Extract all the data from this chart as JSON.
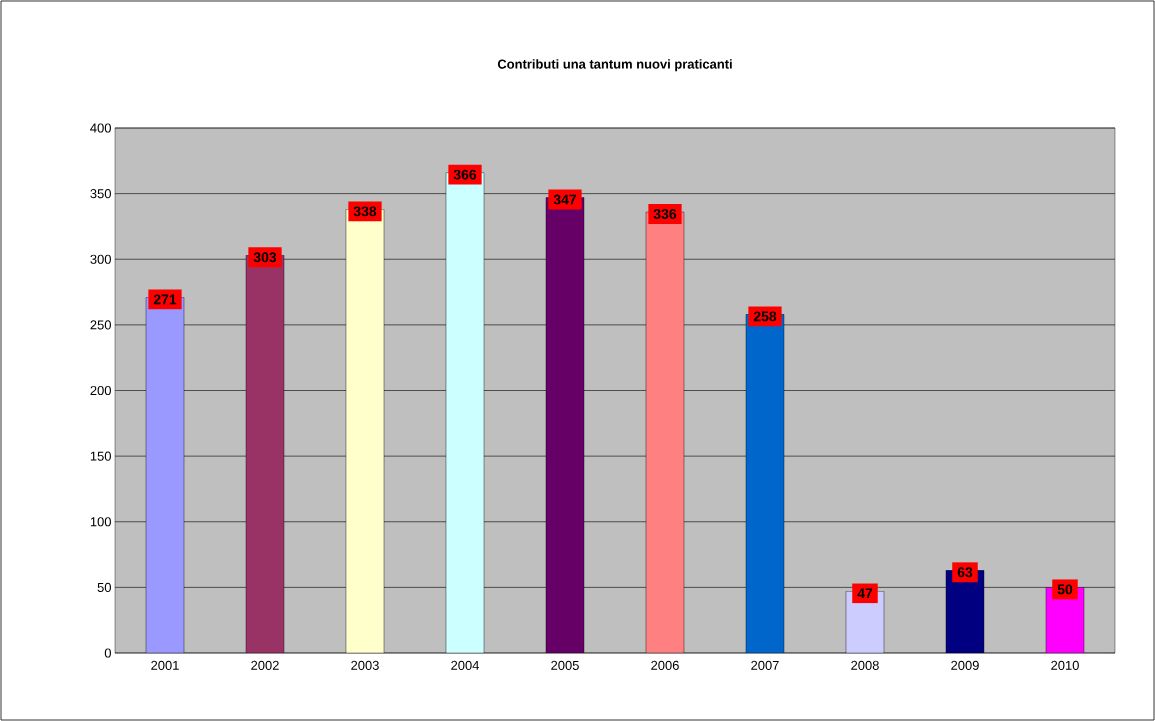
{
  "chart_data": {
    "type": "bar",
    "title": "Contributi una tantum nuovi praticanti",
    "categories": [
      "2001",
      "2002",
      "2003",
      "2004",
      "2005",
      "2006",
      "2007",
      "2008",
      "2009",
      "2010"
    ],
    "values": [
      271,
      303,
      338,
      366,
      347,
      336,
      258,
      47,
      63,
      50
    ],
    "colors": [
      "#9999ff",
      "#993366",
      "#ffffcc",
      "#ccffff",
      "#660066",
      "#ff8080",
      "#0066cc",
      "#ccccff",
      "#000080",
      "#ff00ff"
    ],
    "ylim": [
      0,
      400
    ],
    "yticks": [
      0,
      50,
      100,
      150,
      200,
      250,
      300,
      350,
      400
    ],
    "grid": "y",
    "data_labels": true
  }
}
